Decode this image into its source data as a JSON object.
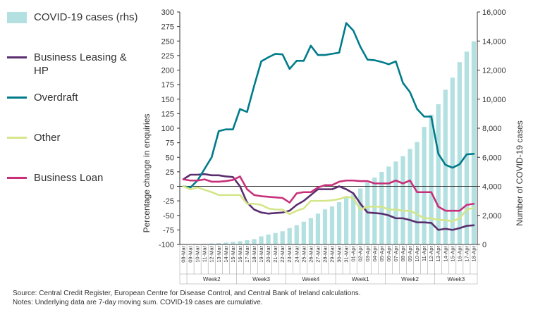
{
  "chart_data": {
    "type": "line",
    "title": "",
    "ylabel": "Percentage change in enquiries",
    "y2label": "Number of COVID-19 cases",
    "ylim": [
      -100,
      300
    ],
    "y2lim": [
      0,
      16000
    ],
    "yticks": [
      -100,
      -75,
      -50,
      -25,
      0,
      25,
      50,
      75,
      100,
      125,
      150,
      175,
      200,
      225,
      250,
      275,
      300
    ],
    "y2ticks": [
      "0",
      "2,000",
      "4,000",
      "6,000",
      "8,000",
      "10,000",
      "12,000",
      "14,000",
      "16,000"
    ],
    "categories": [
      "08-Mar",
      "09-Mar",
      "10-Mar",
      "11-Mar",
      "12-Mar",
      "13-Mar",
      "14-Mar",
      "15-Mar",
      "16-Mar",
      "17-Mar",
      "18-Mar",
      "19-Mar",
      "20-Mar",
      "21-Mar",
      "22-Mar",
      "23-Mar",
      "24-Mar",
      "25-Mar",
      "26-Mar",
      "27-Mar",
      "28-Mar",
      "29-Mar",
      "30-Mar",
      "31-Mar",
      "01-Apr",
      "02-Apr",
      "03-Apr",
      "04-Apr",
      "05-Apr",
      "06-Apr",
      "07-Apr",
      "08-Apr",
      "09-Apr",
      "10-Apr",
      "11-Apr",
      "12-Apr",
      "13-Apr",
      "14-Apr",
      "15-Apr",
      "16-Apr",
      "17-Apr",
      "18-Apr"
    ],
    "week_groups": [
      {
        "label": "Week2",
        "start": 1,
        "end": 8
      },
      {
        "label": "Week3",
        "start": 8,
        "end": 15
      },
      {
        "label": "Week4",
        "start": 15,
        "end": 22
      },
      {
        "label": "Week1",
        "start": 22,
        "end": 29
      },
      {
        "label": "Week2",
        "start": 29,
        "end": 36
      },
      {
        "label": "Week3",
        "start": 36,
        "end": 42
      }
    ],
    "bars": {
      "name": "COVID-19 cases (rhs)",
      "color": "#b3e0e0",
      "axis": "right",
      "values": [
        21,
        24,
        34,
        43,
        70,
        90,
        129,
        169,
        223,
        292,
        366,
        557,
        683,
        785,
        906,
        1125,
        1329,
        1564,
        1819,
        2121,
        2415,
        2615,
        2910,
        3235,
        3447,
        3849,
        4273,
        4604,
        4994,
        5364,
        5709,
        6074,
        6574,
        7054,
        8089,
        8928,
        9655,
        10647,
        11479,
        12547,
        13271,
        13980
      ]
    },
    "series": [
      {
        "name": "Business Leasing & HP",
        "color": "#5a2d6e",
        "values": [
          12,
          20,
          20,
          21,
          19,
          19,
          17,
          16,
          0,
          -28,
          -40,
          -45,
          -47,
          -46,
          -45,
          -42,
          -32,
          -25,
          -15,
          -5,
          -5,
          -5,
          0,
          -5,
          -12,
          -30,
          -45,
          -46,
          -47,
          -50,
          -55,
          -55,
          -58,
          -62,
          -62,
          -63,
          -75,
          -73,
          -75,
          -72,
          -68,
          -67
        ]
      },
      {
        "name": "Overdraft",
        "color": "#007b8a",
        "values": [
          0,
          -2,
          10,
          30,
          50,
          95,
          98,
          98,
          133,
          128,
          173,
          215,
          222,
          228,
          227,
          202,
          216,
          216,
          242,
          226,
          226,
          228,
          230,
          281,
          268,
          240,
          218,
          217,
          214,
          210,
          215,
          178,
          162,
          133,
          120,
          120,
          56,
          37,
          32,
          38,
          55,
          56
        ]
      },
      {
        "name": "Other",
        "color": "#d4e68a",
        "values": [
          0,
          -5,
          -2,
          -6,
          -10,
          -15,
          -15,
          -15,
          -15,
          -30,
          -30,
          -32,
          -38,
          -40,
          -40,
          -48,
          -42,
          -38,
          -25,
          -25,
          -25,
          -24,
          -22,
          -18,
          -20,
          -40,
          -35,
          -35,
          -35,
          -40,
          -40,
          -42,
          -42,
          -48,
          -55,
          -55,
          -58,
          -58,
          -60,
          -55,
          -40,
          -37
        ]
      },
      {
        "name": "Business Loan",
        "color": "#c8317a",
        "values": [
          12,
          10,
          10,
          12,
          8,
          8,
          9,
          11,
          17,
          -5,
          -15,
          -17,
          -18,
          -19,
          -20,
          -28,
          -12,
          -10,
          -10,
          -2,
          2,
          2,
          8,
          10,
          10,
          9,
          9,
          5,
          5,
          5,
          10,
          5,
          10,
          -10,
          -10,
          -10,
          -35,
          -42,
          -42,
          -42,
          -32,
          -30
        ]
      }
    ],
    "legend": [
      {
        "name": "COVID-19 cases (rhs)",
        "kind": "bar",
        "color": "#b3e0e0"
      },
      {
        "name": "Business Leasing & HP",
        "kind": "line",
        "color": "#5a2d6e"
      },
      {
        "name": "Overdraft",
        "kind": "line",
        "color": "#007b8a"
      },
      {
        "name": "Other",
        "kind": "line",
        "color": "#d4e68a"
      },
      {
        "name": "Business Loan",
        "kind": "line",
        "color": "#c8317a"
      }
    ],
    "legend_position": "left"
  },
  "footer": {
    "source": "Source:  Central Credit Register, European Centre for Disease Control, and Central Bank of Ireland calculations.",
    "notes": "Notes: Underlying data are 7-day moving sum. COVID-19 cases are cumulative."
  }
}
